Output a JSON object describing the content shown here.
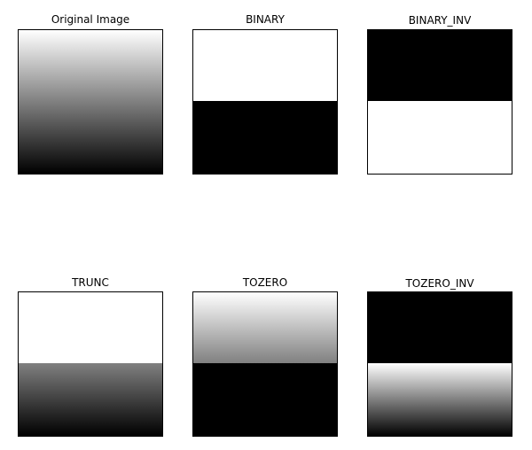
{
  "panels": [
    {
      "title": "Original Image"
    },
    {
      "title": "BINARY"
    },
    {
      "title": "BINARY_INV"
    },
    {
      "title": "TRUNC"
    },
    {
      "title": "TOZERO"
    },
    {
      "title": "TOZERO_INV"
    }
  ]
}
